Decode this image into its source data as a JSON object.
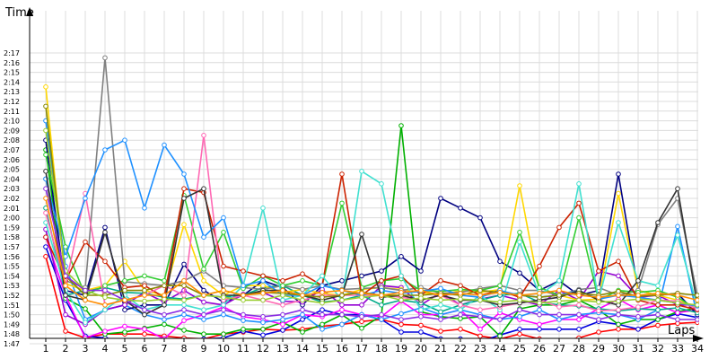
{
  "chart_data": {
    "type": "line",
    "title": "",
    "xlabel": "Laps",
    "ylabel": "Time",
    "x": [
      1,
      2,
      3,
      4,
      5,
      6,
      7,
      8,
      9,
      10,
      11,
      12,
      13,
      14,
      15,
      16,
      17,
      18,
      19,
      20,
      21,
      22,
      23,
      24,
      25,
      26,
      27,
      28,
      29,
      30,
      31,
      32,
      33,
      34
    ],
    "x_ticks": [
      "1",
      "2",
      "3",
      "4",
      "5",
      "6",
      "7",
      "8",
      "9",
      "10",
      "11",
      "12",
      "13",
      "14",
      "15",
      "16",
      "17",
      "18",
      "19",
      "20",
      "21",
      "22",
      "23",
      "24",
      "25",
      "26",
      "27",
      "28",
      "29",
      "30",
      "31",
      "32",
      "33",
      "34"
    ],
    "y_ticks": [
      "1:47",
      "1:48",
      "1:49",
      "1:50",
      "1:51",
      "1:52",
      "1:53",
      "1:54",
      "1:55",
      "1:56",
      "1:57",
      "1:58",
      "1:59",
      "2:00",
      "2:01",
      "2:02",
      "2:03",
      "2:04",
      "2:05",
      "2:06",
      "2:07",
      "2:08",
      "2:09",
      "2:10",
      "2:11",
      "2:12",
      "2:13",
      "2:14",
      "2:15",
      "2:16",
      "2:17"
    ],
    "y_range_seconds": [
      107,
      137
    ],
    "grid": true,
    "legend": "none",
    "series": [
      {
        "color": "#ff0000",
        "values": [
          116,
          108.3,
          107.6,
          108,
          108,
          108,
          107.8,
          107.6,
          107.5,
          108,
          108.2,
          108.5,
          108.4,
          108.5,
          108.8,
          109,
          109.3,
          109.5,
          109,
          108.9,
          108.3,
          108.5,
          107.8,
          107.5,
          108,
          107.5,
          107.3,
          107.6,
          108.2,
          108.5,
          108.5,
          108.9,
          109.1,
          109.2
        ]
      },
      {
        "color": "#0000dd",
        "values": [
          117,
          111.5,
          107.8,
          107.6,
          107.3,
          107,
          107.5,
          107.3,
          107.5,
          107.6,
          108.3,
          107.9,
          108.4,
          109.5,
          110.5,
          110,
          110,
          109.5,
          108.2,
          108.2,
          107.5,
          107.5,
          107.2,
          107.9,
          108.5,
          108.5,
          108.5,
          108.5,
          109.3,
          109,
          108.5,
          109.5,
          110.1,
          109.7
        ]
      },
      {
        "color": "#00b000",
        "values": [
          127,
          111.7,
          110.6,
          108,
          108.2,
          108.6,
          109,
          108.4,
          108,
          108,
          108.5,
          108.5,
          109.2,
          108.2,
          109,
          110,
          108.6,
          109.9,
          129.5,
          110.3,
          109.8,
          109.6,
          109.8,
          107.8,
          110.6,
          111,
          111,
          111.5,
          110.5,
          109,
          109.5,
          109.5,
          110.3,
          110.7
        ]
      },
      {
        "color": "#ff00ff",
        "values": [
          118,
          112,
          107.6,
          108.3,
          108.8,
          108.5,
          107.5,
          109.4,
          110,
          110.8,
          109.8,
          109.5,
          109,
          110,
          109.8,
          110.5,
          110,
          109.8,
          111.4,
          110,
          110,
          110.5,
          108.5,
          110.2,
          109.5,
          109,
          109.5,
          109.5,
          110.6,
          111.6,
          110.5,
          111,
          110.2,
          110.5
        ]
      },
      {
        "color": "#1e90ff",
        "values": [
          130,
          115,
          109.5,
          110.5,
          111,
          110,
          109.5,
          110,
          109.5,
          110,
          109.4,
          109.2,
          109.5,
          110,
          108.5,
          109,
          110,
          109.5,
          110.1,
          110.7,
          110,
          110.5,
          110,
          109.5,
          109.8,
          110.5,
          109.5,
          110,
          110.2,
          110,
          109.5,
          110.5,
          119.1,
          109.8
        ]
      },
      {
        "color": "#000080",
        "values": [
          128,
          112.5,
          112,
          119,
          110.5,
          111,
          111,
          115.2,
          112.5,
          111.3,
          112,
          113.5,
          112.8,
          111,
          113,
          113.5,
          114,
          114.5,
          116,
          114.5,
          122,
          121,
          120,
          115.5,
          114.3,
          112.5,
          113.5,
          112,
          112.5,
          124.5,
          112.5,
          112,
          112.2,
          110
        ]
      },
      {
        "color": "#9400d3",
        "values": [
          118.8,
          110,
          109,
          110.5,
          111,
          112.3,
          111.3,
          112.5,
          111.3,
          111,
          112.1,
          112.3,
          111.4,
          111.3,
          112.6,
          111,
          111,
          113,
          112.8,
          111,
          112.3,
          111,
          111.6,
          112,
          111.5,
          111,
          112.5,
          111.5,
          114.5,
          114,
          111.8,
          112,
          111,
          111
        ]
      },
      {
        "color": "#00aa88",
        "values": [
          121,
          112,
          112.5,
          112.8,
          112.3,
          112.2,
          111.8,
          111.6,
          112,
          111.8,
          112,
          112.8,
          113,
          112,
          111.3,
          111.5,
          112,
          111,
          111.5,
          111.2,
          110.3,
          111,
          111.5,
          112,
          112.2,
          111.3,
          111,
          110.9,
          110.6,
          110.4,
          110.6,
          110.5,
          110.7,
          110.2
        ]
      },
      {
        "color": "#ffd700",
        "values": [
          133.5,
          113.2,
          112.5,
          113,
          115.5,
          112.5,
          112,
          119.3,
          113.5,
          112,
          113,
          113,
          112.3,
          112.6,
          112.2,
          112,
          112.6,
          112.8,
          112.6,
          112.3,
          112,
          112.5,
          112.3,
          112.6,
          123.3,
          112.5,
          112,
          111.5,
          111.6,
          122.5,
          112.5,
          112,
          111.5,
          110.8
        ]
      },
      {
        "color": "#808080",
        "values": [
          124,
          113.5,
          112.8,
          136.5,
          113.4,
          113.2,
          113,
          113.5,
          114.5,
          113,
          112.8,
          112.6,
          113,
          112.6,
          113,
          112.6,
          112.7,
          112.8,
          112.5,
          112.8,
          112.2,
          112.3,
          112.7,
          113,
          112.5,
          112.5,
          112,
          112.6,
          112.8,
          112,
          112.5,
          119.3,
          122,
          112
        ]
      },
      {
        "color": "#32cd32",
        "values": [
          126.5,
          117,
          112,
          113,
          113.5,
          114,
          113.5,
          122.3,
          114.7,
          118.5,
          112.7,
          114,
          113,
          113.5,
          113,
          121.5,
          112.8,
          113.5,
          113.7,
          112.5,
          112.4,
          112.6,
          112.5,
          113,
          118.5,
          112.8,
          112,
          120,
          111.5,
          112.5,
          112.3,
          112.5,
          111.8,
          110.5
        ]
      },
      {
        "color": "#cc2200",
        "values": [
          118,
          113.5,
          117.5,
          115.5,
          112.8,
          113,
          111.8,
          123,
          122.6,
          115,
          114.5,
          114,
          113.5,
          114.2,
          113,
          124.5,
          112,
          113.5,
          114,
          112,
          113.5,
          113,
          112,
          112.5,
          111.8,
          115,
          119,
          121.5,
          114.5,
          115.5,
          111.5,
          111,
          111,
          110.5
        ]
      },
      {
        "color": "#40e0d0",
        "values": [
          119.5,
          112.5,
          109.2,
          110.5,
          112,
          110.5,
          111,
          111,
          110.5,
          111,
          113,
          121,
          111.5,
          112,
          114,
          111.5,
          124.8,
          123.5,
          114,
          110.5,
          111,
          110.5,
          112,
          110.5,
          117.5,
          112,
          113.5,
          123.5,
          111.5,
          119.5,
          113.5,
          113,
          118.2,
          110.8
        ]
      },
      {
        "color": "#ff69b4",
        "values": [
          120.5,
          113,
          122.5,
          111,
          111.5,
          112,
          113,
          112,
          128.5,
          111.5,
          112,
          111.5,
          111,
          111.5,
          112,
          112,
          112,
          112,
          111.8,
          111.5,
          112,
          111,
          110.5,
          110.8,
          111.2,
          111.5,
          110.8,
          111,
          110.4,
          110.5,
          110.8,
          111.5,
          111.4,
          110.6
        ]
      },
      {
        "color": "#1e90ff",
        "values": [
          124,
          116,
          122,
          127,
          128,
          121,
          127.5,
          124.5,
          118,
          120,
          113,
          113.5,
          112,
          112,
          113,
          112.5,
          112,
          112.5,
          112.2,
          112.4,
          112.7,
          112,
          111.8,
          112.5,
          112,
          111.8,
          112,
          112.5,
          111.6,
          112,
          111.8,
          111.5,
          111.2,
          110.9
        ]
      },
      {
        "color": "#333333",
        "values": [
          124.8,
          112,
          111.5,
          118.5,
          111.5,
          110,
          111,
          122,
          123,
          112,
          112,
          112.5,
          112.5,
          112,
          111.5,
          112,
          118.3,
          111.8,
          112,
          111.5,
          112,
          111.5,
          111.5,
          111,
          111.2,
          111.5,
          111.8,
          112.5,
          111.5,
          111,
          113.5,
          119.5,
          123,
          111
        ]
      },
      {
        "color": "#888800",
        "values": [
          131.5,
          114,
          112,
          112,
          112.5,
          112.5,
          113,
          113,
          112,
          112.5,
          112,
          112.3,
          112.2,
          112,
          111.8,
          112,
          112.3,
          112,
          112,
          112,
          112.2,
          112,
          112.5,
          112.3,
          112,
          111.8,
          112,
          112.2,
          112,
          112.4,
          111.9,
          112,
          112.2,
          112
        ]
      },
      {
        "color": "#9acd32",
        "values": [
          129,
          114.5,
          112.5,
          111.8,
          111.5,
          111.4,
          111.6,
          111.5,
          112,
          111.8,
          111.5,
          111.5,
          112,
          111.5,
          111.2,
          111.5,
          111.8,
          112,
          111.5,
          111.7,
          111.5,
          111.6,
          111.5,
          111.3,
          111.5,
          111.2,
          111.4,
          111.5,
          111.3,
          111.4,
          111.6,
          111.5,
          111.2,
          111
        ]
      },
      {
        "color": "#8a2be2",
        "values": [
          123,
          114,
          112.5,
          112.5,
          111.5,
          110.5,
          110,
          110.5,
          110,
          110.5,
          110,
          109.8,
          110,
          110.5,
          110,
          110,
          109.8,
          110,
          109.5,
          109.8,
          109.5,
          110,
          109.8,
          109.5,
          110.5,
          110,
          110,
          110,
          109.5,
          110,
          109.8,
          110,
          109.5,
          109.5
        ]
      },
      {
        "color": "#ff8c00",
        "values": [
          122,
          113,
          111.5,
          111,
          111.5,
          112,
          112,
          113.5,
          112,
          112.5,
          112,
          112.2,
          112.5,
          112,
          112.3,
          112.5,
          112.2,
          112,
          112.3,
          112.5,
          112,
          112.2,
          112,
          112.3,
          112,
          112.2,
          112.5,
          112,
          111.8,
          112,
          112,
          112.2,
          112,
          111.5
        ]
      }
    ]
  }
}
